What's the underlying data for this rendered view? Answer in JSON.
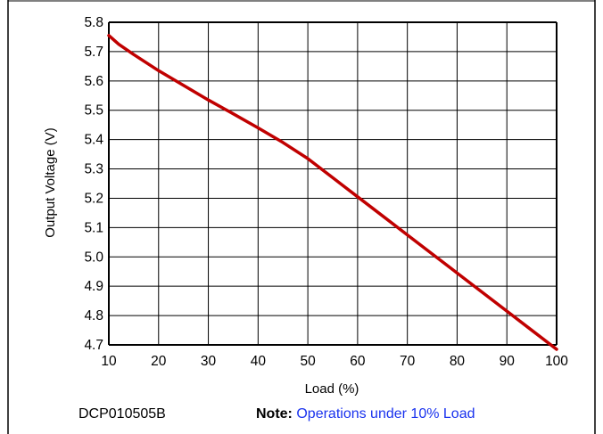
{
  "chart_data": {
    "type": "line",
    "title": "",
    "xlabel": "Load (%)",
    "ylabel": "Output Voltage (V)",
    "xlim": [
      10,
      100
    ],
    "ylim": [
      4.7,
      5.8
    ],
    "x_ticks": [
      10,
      20,
      30,
      40,
      50,
      60,
      70,
      80,
      90,
      100
    ],
    "y_ticks": [
      "4.7",
      "4.8",
      "4.9",
      "5.0",
      "5.1",
      "5.2",
      "5.3",
      "5.4",
      "5.5",
      "5.6",
      "5.7",
      "5.8"
    ],
    "grid": true,
    "legend": "none",
    "series": [
      {
        "color": "#c00000",
        "x": [
          10,
          12,
          15,
          20,
          25,
          30,
          35,
          40,
          45,
          50,
          55,
          60,
          65,
          70,
          75,
          80,
          85,
          90,
          95,
          100
        ],
        "y": [
          5.755,
          5.725,
          5.69,
          5.635,
          5.585,
          5.535,
          5.488,
          5.44,
          5.39,
          5.335,
          5.27,
          5.205,
          5.14,
          5.075,
          5.01,
          4.945,
          4.88,
          4.815,
          4.75,
          4.685
        ]
      }
    ]
  },
  "footer": {
    "part_number": "DCP010505B",
    "note_label": "Note:",
    "note_text": "Operations under 10% Load"
  },
  "colors": {
    "curve": "#c00000",
    "grid": "#000000",
    "note_link": "#1a33ee"
  }
}
